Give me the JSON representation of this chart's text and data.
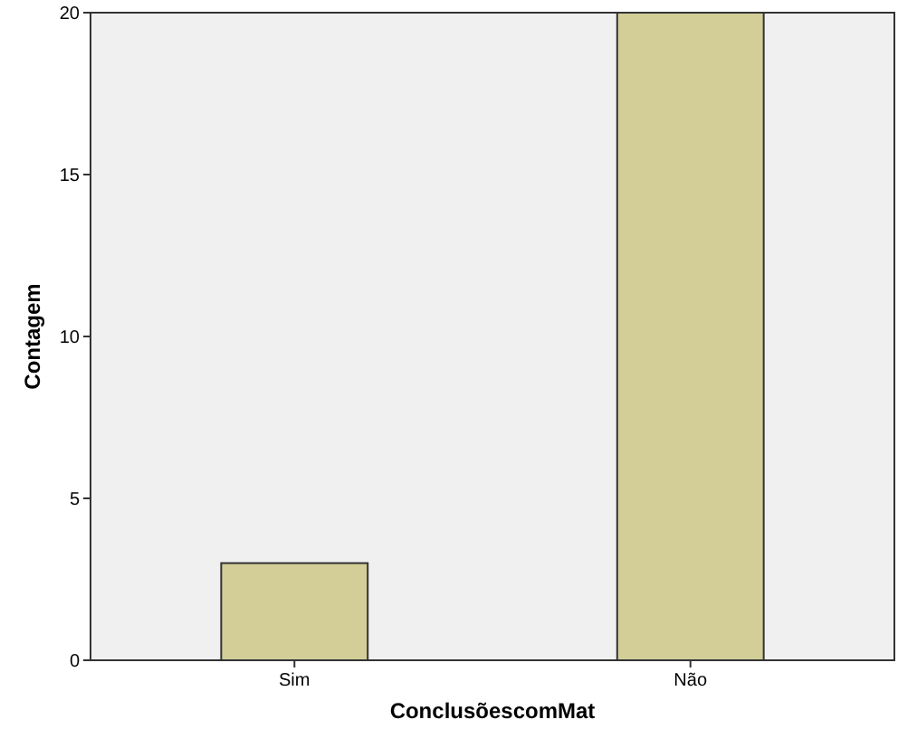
{
  "chart_data": {
    "type": "bar",
    "xlabel": "ConclusõescomMat",
    "ylabel": "Contagem",
    "categories": [
      "Sim",
      "Não"
    ],
    "values": [
      3,
      20
    ],
    "color": "#d3ce97",
    "ylim": [
      0,
      20
    ],
    "yticks": [
      0,
      5,
      10,
      15,
      20
    ],
    "grid": false
  }
}
